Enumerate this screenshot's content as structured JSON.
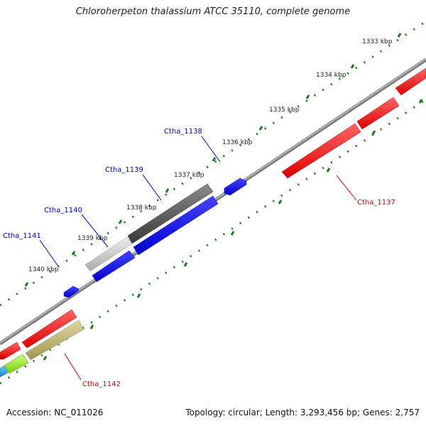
{
  "title": "Chloroherpeton thalassium ATCC 35110, complete genome",
  "footer": {
    "accession": "Accession: NC_011026",
    "summary": "Topology: circular; Length: 3,293,456 bp; Genes: 2,757"
  },
  "ticks": [
    "1333 kbp",
    "1334 kbp",
    "1335 kbp",
    "1336 kbp",
    "1337 kbp",
    "1338 kbp",
    "1339 kbp",
    "1340 kbp"
  ],
  "gene_labels": [
    {
      "text": "Ctha_1138",
      "color": "#0000cc"
    },
    {
      "text": "Ctha_1139",
      "color": "#0000cc"
    },
    {
      "text": "Ctha_1140",
      "color": "#0000cc"
    },
    {
      "text": "Ctha_1141",
      "color": "#0000cc"
    },
    {
      "text": "Ctha_1137",
      "color": "#cc0000"
    },
    {
      "text": "Ctha_1142",
      "color": "#cc0000"
    }
  ],
  "colors": {
    "backbone": "#888888",
    "tick": "#1a7a1a",
    "red": "#ee1111",
    "blue": "#1111dd",
    "dark_gray": "#555555",
    "light_gray": "#cccccc",
    "olive": "#b8b070",
    "lime": "#99ee22",
    "cyan": "#22aadd"
  }
}
